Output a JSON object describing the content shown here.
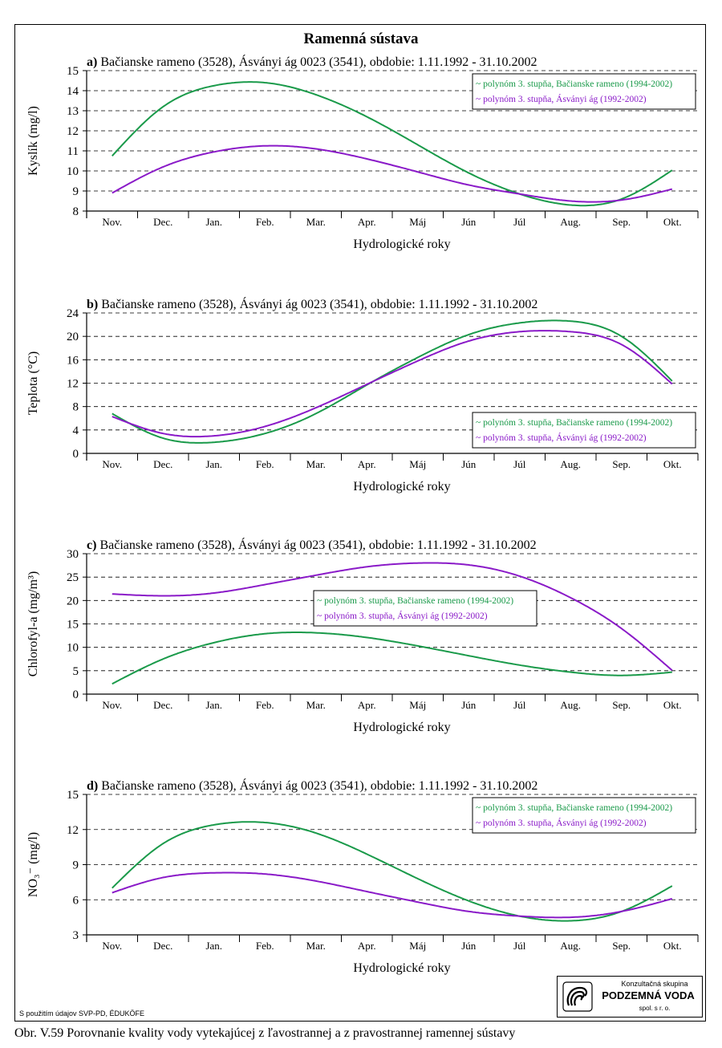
{
  "page_title": "Ramenná sústava",
  "source_note": "S použitím údajov SVP-PD, ÉDUKÖFE",
  "caption": "Obr. V.59 Porovnanie kvality vody vytekajúcej z ľavostrannej a z pravostrannej ramennej sústavy",
  "logo": {
    "sub": "Konzultačná skupina",
    "name": "PODZEMNÁ VODA",
    "suffix": "spol. s r. o."
  },
  "colors": {
    "green": "#1a9a4a",
    "purple": "#8a1ac8"
  },
  "chart_data": [
    {
      "id": "a",
      "type": "line",
      "panel_letter": "a)",
      "title": " Bačianske rameno (3528), Ásványi ág 0023 (3541), obdobie: 1.11.1992 - 31.10.2002",
      "xlabel": "Hydrologické roky",
      "ylabel": "Kyslík  (mg/l)",
      "categories": [
        "Nov.",
        "Dec.",
        "Jan.",
        "Feb.",
        "Mar.",
        "Apr.",
        "Máj",
        "Jún",
        "Júl",
        "Aug.",
        "Sep.",
        "Okt."
      ],
      "ylim": [
        8,
        15
      ],
      "yticks": [
        8,
        9,
        10,
        11,
        12,
        13,
        14,
        15
      ],
      "grid": true,
      "legend_position": "top-right",
      "series": [
        {
          "name": "~ polynóm 3. stupňa, Bačianske rameno (1994-2002)",
          "color": "#1a9a4a",
          "values": [
            10.75,
            13.2,
            14.25,
            14.4,
            13.8,
            12.7,
            11.3,
            9.9,
            8.85,
            8.3,
            8.6,
            10.05
          ]
        },
        {
          "name": "~ polynóm 3. stupňa, Ásványi ág (1992-2002)",
          "color": "#8a1ac8",
          "values": [
            8.9,
            10.2,
            10.95,
            11.25,
            11.1,
            10.6,
            9.95,
            9.3,
            8.85,
            8.5,
            8.55,
            9.1
          ]
        }
      ]
    },
    {
      "id": "b",
      "type": "line",
      "panel_letter": "b)",
      "title": " Bačianske rameno (3528), Ásványi ág 0023 (3541), obdobie: 1.11.1992 - 31.10.2002",
      "xlabel": "Hydrologické roky",
      "ylabel": "Teplota  (°C)",
      "categories": [
        "Nov.",
        "Dec.",
        "Jan.",
        "Feb.",
        "Mar.",
        "Apr.",
        "Máj",
        "Jún",
        "Júl",
        "Aug.",
        "Sep.",
        "Okt."
      ],
      "ylim": [
        0,
        24
      ],
      "yticks": [
        0,
        4,
        8,
        12,
        16,
        20,
        24
      ],
      "grid": true,
      "legend_position": "bottom-right",
      "series": [
        {
          "name": "~ polynóm 3. stupňa, Bačianske rameno (1994-2002)",
          "color": "#1a9a4a",
          "values": [
            6.8,
            2.6,
            1.9,
            3.4,
            6.8,
            11.7,
            16.4,
            20.3,
            22.3,
            22.6,
            20.0,
            12.3
          ]
        },
        {
          "name": "~ polynóm 3. stupňa, Ásványi ág (1992-2002)",
          "color": "#8a1ac8",
          "values": [
            6.3,
            3.4,
            3.0,
            4.6,
            7.8,
            11.8,
            15.8,
            19.2,
            20.8,
            20.8,
            18.6,
            11.8
          ]
        }
      ]
    },
    {
      "id": "c",
      "type": "line",
      "panel_letter": "c)",
      "title": " Bačianske rameno (3528), Ásványi ág 0023 (3541), obdobie: 1.11.1992 - 31.10.2002",
      "xlabel": "Hydrologické roky",
      "ylabel": "Chlorofyl-a  (mg/m³)",
      "categories": [
        "Nov.",
        "Dec.",
        "Jan.",
        "Feb.",
        "Mar.",
        "Apr.",
        "Máj",
        "Jún",
        "Júl",
        "Aug.",
        "Sep.",
        "Okt."
      ],
      "ylim": [
        0,
        30
      ],
      "yticks": [
        0,
        5,
        10,
        15,
        20,
        25,
        30
      ],
      "grid": true,
      "legend_position": "center",
      "series": [
        {
          "name": "~ polynóm 3. stupňa, Bačianske rameno (1994-2002)",
          "color": "#1a9a4a",
          "values": [
            2.2,
            7.5,
            11.0,
            12.9,
            13.1,
            12.1,
            10.3,
            8.2,
            6.2,
            4.7,
            4.0,
            4.7
          ]
        },
        {
          "name": "~ polynóm 3. stupňa, Ásványi ág (1992-2002)",
          "color": "#8a1ac8",
          "values": [
            21.4,
            21.0,
            21.6,
            23.4,
            25.4,
            27.2,
            28.0,
            27.6,
            25.2,
            20.6,
            14.0,
            5.0
          ]
        }
      ]
    },
    {
      "id": "d",
      "type": "line",
      "panel_letter": "d)",
      "title": " Bačianske rameno (3528), Ásványi ág 0023 (3541), obdobie: 1.11.1992 - 31.10.2002",
      "xlabel": "Hydrologické roky",
      "ylabel": "NO₃⁻  (mg/l)",
      "categories": [
        "Nov.",
        "Dec.",
        "Jan.",
        "Feb.",
        "Mar.",
        "Apr.",
        "Máj",
        "Jún",
        "Júl",
        "Aug.",
        "Sep.",
        "Okt."
      ],
      "ylim": [
        3,
        15
      ],
      "yticks": [
        3,
        6,
        9,
        12,
        15
      ],
      "grid": true,
      "legend_position": "top-right",
      "series": [
        {
          "name": "~ polynóm 3. stupňa, Bačianske rameno (1994-2002)",
          "color": "#1a9a4a",
          "values": [
            7.0,
            10.8,
            12.4,
            12.6,
            11.7,
            9.9,
            7.8,
            5.9,
            4.6,
            4.2,
            5.0,
            7.2
          ]
        },
        {
          "name": "~ polynóm 3. stupňa, Ásványi ág (1992-2002)",
          "color": "#8a1ac8",
          "values": [
            6.6,
            7.9,
            8.3,
            8.2,
            7.6,
            6.7,
            5.8,
            5.0,
            4.6,
            4.5,
            5.0,
            6.1
          ]
        }
      ]
    }
  ]
}
